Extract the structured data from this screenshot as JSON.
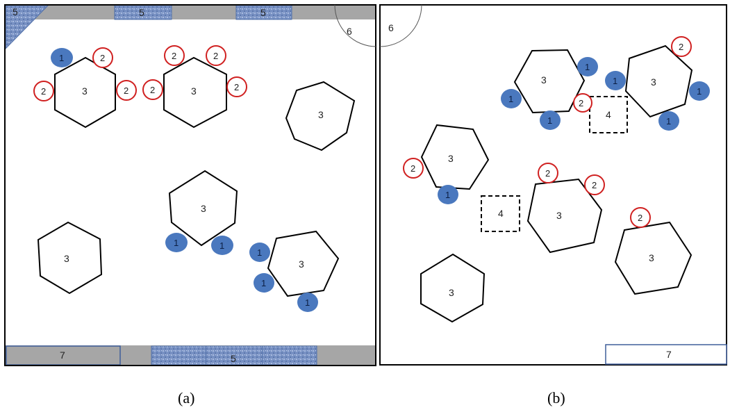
{
  "captions": {
    "a": "(a)",
    "b": "(b)"
  },
  "panel_a": {
    "cells": {
      "corner": "5",
      "top_left": "5",
      "top_right": "5",
      "quarter_circle": "6",
      "bottom_left": "7",
      "bottom_mid": "5"
    },
    "hex_label": "3",
    "blue_label": "1",
    "red_label": "2"
  },
  "panel_b": {
    "cells": {
      "quarter_circle": "6",
      "bottom_right": "7",
      "square_label": "4"
    },
    "hex_label": "3",
    "blue_label": "1",
    "red_label": "2"
  },
  "colors": {
    "blue_marker": "#4a78be",
    "red_ring": "#d02020",
    "gray_wall": "#a6a6a6",
    "texture_blue": "#7891c3"
  }
}
